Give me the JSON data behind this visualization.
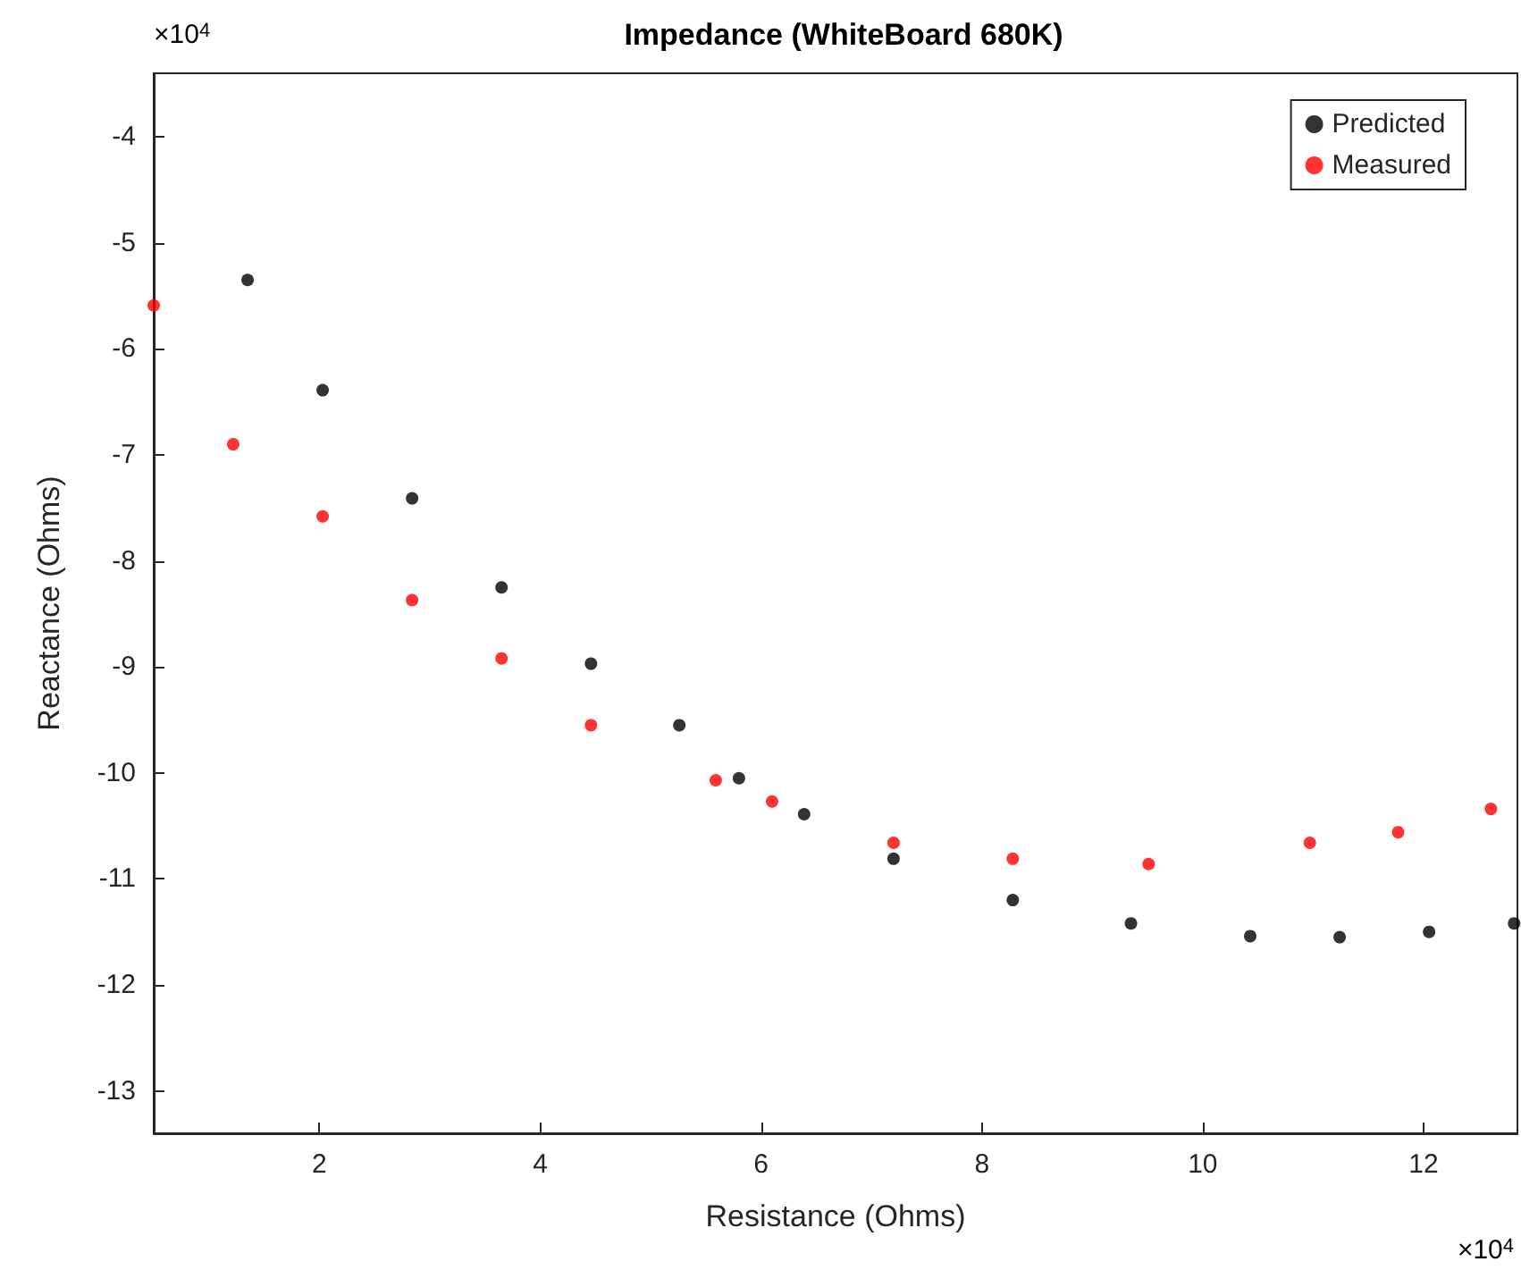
{
  "chart_data": {
    "type": "scatter",
    "title": "Impedance (WhiteBoard 680K)",
    "xlabel": "Resistance (Ohms)",
    "ylabel": "Reactance (Ohms)",
    "annotations": [
      "×10$^{4}$",
      "×10$^{4}$"
    ],
    "series": [
      {
        "name": "Predicted",
        "color": "#000000",
        "x": [
          1.35,
          2.03,
          2.84,
          3.65,
          4.46,
          5.26,
          5.8,
          6.39,
          7.2,
          8.28,
          9.35,
          10.43,
          11.24,
          12.05,
          12.82
        ],
        "values": [
          -5.35,
          -6.39,
          -7.41,
          -8.25,
          -8.97,
          -9.55,
          -10.05,
          -10.39,
          -10.81,
          -11.2,
          -11.42,
          -11.54,
          -11.55,
          -11.5,
          -11.42
        ]
      },
      {
        "name": "Measured",
        "color": "#ff0000",
        "x": [
          0.5,
          1.22,
          2.03,
          2.84,
          3.65,
          4.46,
          5.59,
          6.1,
          7.2,
          8.28,
          9.51,
          10.97,
          11.77,
          12.61
        ],
        "values": [
          -5.59,
          -6.9,
          -7.58,
          -8.37,
          -8.92,
          -9.55,
          -10.07,
          -10.27,
          -10.66,
          -10.81,
          -10.86,
          -10.66,
          -10.56,
          -10.34
        ]
      }
    ],
    "xlim": [
      0.5,
      12.85
    ],
    "xticks": [
      2,
      4,
      6,
      8,
      10,
      12
    ],
    "ylim": [
      -13.4,
      -3.4
    ],
    "yticks": [
      -13,
      -12,
      -11,
      -10,
      -9,
      -8,
      -7,
      -6,
      -5,
      -4
    ],
    "grid": false,
    "legend": "top right",
    "marker": "circle"
  }
}
